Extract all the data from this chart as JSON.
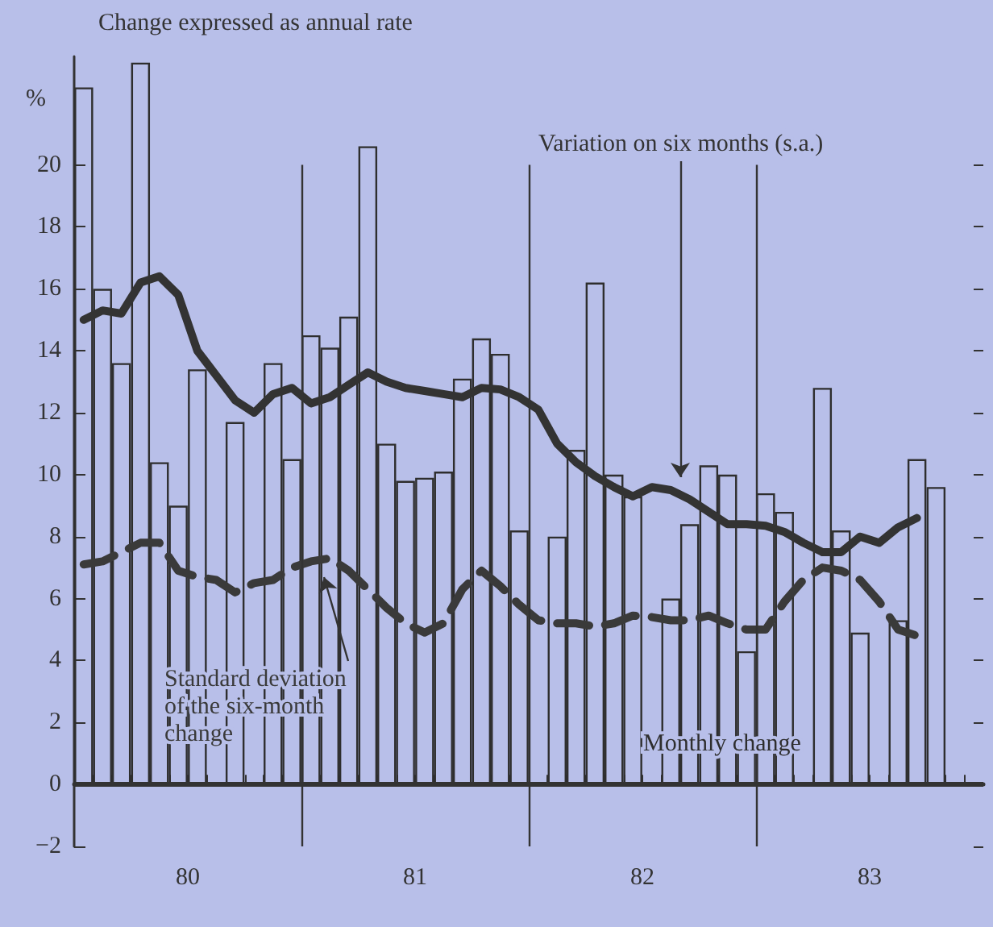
{
  "chart_data": {
    "type": "bar",
    "title": "Change expressed as annual rate",
    "ylabel": "%",
    "x": [
      80.042,
      80.125,
      80.208,
      80.292,
      80.375,
      80.458,
      80.542,
      80.625,
      80.708,
      80.792,
      80.875,
      80.958,
      81.042,
      81.125,
      81.208,
      81.292,
      81.375,
      81.458,
      81.542,
      81.625,
      81.708,
      81.792,
      81.875,
      81.958,
      82.042,
      82.125,
      82.208,
      82.292,
      82.375,
      82.458,
      82.542,
      82.625,
      82.708,
      82.792,
      82.875,
      82.958,
      83.042,
      83.125,
      83.208,
      83.292,
      83.375,
      83.458,
      83.542,
      83.625,
      83.708,
      83.792
    ],
    "xlim": [
      80,
      84
    ],
    "xticks": [
      {
        "value": 80.083,
        "label": null
      },
      {
        "value": 80.167,
        "label": null
      },
      {
        "value": 80.25,
        "label": null
      },
      {
        "value": 80.333,
        "label": null
      },
      {
        "value": 80.417,
        "label": null
      },
      {
        "value": 80.5,
        "label": "80"
      },
      {
        "value": 80.583,
        "label": null
      },
      {
        "value": 80.667,
        "label": null
      },
      {
        "value": 80.75,
        "label": null
      },
      {
        "value": 80.833,
        "label": null
      },
      {
        "value": 80.917,
        "label": null
      },
      {
        "value": 81.083,
        "label": null
      },
      {
        "value": 81.167,
        "label": null
      },
      {
        "value": 81.25,
        "label": null
      },
      {
        "value": 81.333,
        "label": null
      },
      {
        "value": 81.417,
        "label": null
      },
      {
        "value": 81.5,
        "label": "81"
      },
      {
        "value": 81.583,
        "label": null
      },
      {
        "value": 81.667,
        "label": null
      },
      {
        "value": 81.75,
        "label": null
      },
      {
        "value": 81.833,
        "label": null
      },
      {
        "value": 81.917,
        "label": null
      },
      {
        "value": 82.083,
        "label": null
      },
      {
        "value": 82.167,
        "label": null
      },
      {
        "value": 82.25,
        "label": null
      },
      {
        "value": 82.333,
        "label": null
      },
      {
        "value": 82.417,
        "label": null
      },
      {
        "value": 82.5,
        "label": "82"
      },
      {
        "value": 82.583,
        "label": null
      },
      {
        "value": 82.667,
        "label": null
      },
      {
        "value": 82.75,
        "label": null
      },
      {
        "value": 82.833,
        "label": null
      },
      {
        "value": 82.917,
        "label": null
      },
      {
        "value": 83.083,
        "label": null
      },
      {
        "value": 83.167,
        "label": null
      },
      {
        "value": 83.25,
        "label": null
      },
      {
        "value": 83.333,
        "label": null
      },
      {
        "value": 83.417,
        "label": null
      },
      {
        "value": 83.5,
        "label": "83"
      },
      {
        "value": 83.583,
        "label": null
      },
      {
        "value": 83.667,
        "label": null
      },
      {
        "value": 83.75,
        "label": null
      },
      {
        "value": 83.833,
        "label": null
      },
      {
        "value": 83.917,
        "label": null
      }
    ],
    "ylim": [
      -2,
      23.5
    ],
    "yticks": [
      {
        "value": -2,
        "label": "−2"
      },
      0,
      2,
      4,
      6,
      8,
      10,
      12,
      14,
      16,
      18,
      20
    ],
    "series": [
      {
        "name": "Monthly change",
        "color": "#2e2e2e",
        "values": [
          22.5,
          16.0,
          13.6,
          23.3,
          10.4,
          9.0,
          13.4,
          null,
          11.7,
          null,
          13.6,
          10.5,
          14.5,
          14.1,
          15.1,
          20.6,
          11.0,
          9.8,
          9.9,
          10.1,
          13.1,
          14.4,
          13.9,
          8.2,
          null,
          8.0,
          10.8,
          16.2,
          10.0,
          9.3,
          null,
          6.0,
          8.4,
          10.3,
          10.0,
          4.3,
          9.4,
          8.8,
          null,
          12.8,
          8.2,
          4.9,
          null,
          5.3,
          10.5,
          9.6
        ]
      },
      {
        "name": "Variation on six months (s.a.)",
        "type": "line",
        "color": "#333333",
        "line_style": "solid",
        "values": [
          15.0,
          15.3,
          15.2,
          16.2,
          16.4,
          15.8,
          14.0,
          13.2,
          12.4,
          12.0,
          12.6,
          12.8,
          12.3,
          12.5,
          12.9,
          13.3,
          13.0,
          12.8,
          12.7,
          12.6,
          12.5,
          12.8,
          12.75,
          12.5,
          12.1,
          11.0,
          10.4,
          9.95,
          9.6,
          9.3,
          9.6,
          9.5,
          9.2,
          8.8,
          8.4,
          8.4,
          8.35,
          8.15,
          7.8,
          7.5,
          7.5,
          8.0,
          7.8,
          8.3,
          8.6,
          null
        ]
      },
      {
        "name": "Standard deviation of the six-month change",
        "type": "line",
        "color": "#3a3a3a",
        "line_style": "dashed",
        "values": [
          7.1,
          7.2,
          7.5,
          7.8,
          7.8,
          6.9,
          6.7,
          6.6,
          6.2,
          6.5,
          6.6,
          7.0,
          7.2,
          7.3,
          6.9,
          6.3,
          5.7,
          5.2,
          4.9,
          5.2,
          6.3,
          6.9,
          6.4,
          5.8,
          5.3,
          5.2,
          5.2,
          5.1,
          5.2,
          5.45,
          5.4,
          5.3,
          5.3,
          5.45,
          5.2,
          5.0,
          5.0,
          5.9,
          6.6,
          7.0,
          6.9,
          6.6,
          5.9,
          5.0,
          4.8,
          null
        ]
      }
    ],
    "ref_lines": [
      {
        "axis": "x",
        "value": 81
      },
      {
        "axis": "x",
        "value": 82
      },
      {
        "axis": "x",
        "value": 83
      },
      {
        "axis": "y",
        "value": 0
      }
    ],
    "grid": false,
    "legend": false,
    "marker": "none"
  }
}
